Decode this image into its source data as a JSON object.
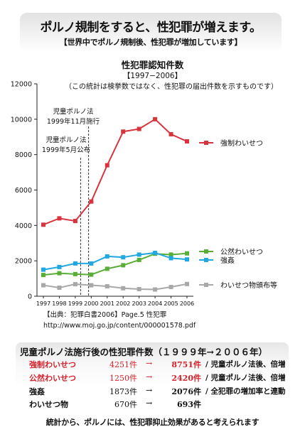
{
  "header": {
    "title": "ポルノ規制をすると、性犯罪が増えます。",
    "subtitle": "【世界中でポルノ規制後、性犯罪が増加しています】"
  },
  "chart_data": {
    "type": "line",
    "title": "性犯罪認知件数",
    "period": "【1997−2006】",
    "note": "（この統計は検挙数ではなく、性犯罪の届出件数を示すものです）",
    "x": [
      "1997",
      "1998",
      "1999",
      "2000",
      "2001",
      "2002",
      "2003",
      "2004",
      "2005",
      "2006"
    ],
    "y_ticks": [
      "0",
      "2000",
      "4000",
      "6000",
      "8000",
      "10000",
      "12000"
    ],
    "ylim": [
      0,
      12000
    ],
    "grid": false,
    "series": [
      {
        "name": "強制わいせつ",
        "color": "#d8343d",
        "values": [
          4040,
          4400,
          4250,
          5350,
          7400,
          9300,
          9450,
          10000,
          9150,
          8750
        ]
      },
      {
        "name": "公然わいせつ",
        "color": "#5aae38",
        "values": [
          1200,
          1300,
          1250,
          1220,
          1550,
          1750,
          2050,
          2400,
          2350,
          2420
        ]
      },
      {
        "name": "強姦",
        "color": "#22a8e0",
        "values": [
          1500,
          1650,
          1850,
          1850,
          2250,
          2200,
          2350,
          2450,
          2150,
          2080
        ]
      },
      {
        "name": "わいせつ物頒布等",
        "color": "#a8a8a8",
        "values": [
          620,
          480,
          680,
          620,
          560,
          450,
          400,
          380,
          520,
          690
        ]
      }
    ],
    "annotations": [
      {
        "lines": [
          "児童ポルノ法",
          "1999年5月公布"
        ]
      },
      {
        "lines": [
          "児童ポルノ法",
          "1999年11月施行"
        ]
      }
    ]
  },
  "source": {
    "line1": "【出典：犯罪白書2006】Page.5 性犯罪",
    "line2": "http://www.moj.go.jp/content/000001578.pdf"
  },
  "stats": {
    "title": "児童ポルノ法施行後の性犯罪件数（１９９９年→２００６年）",
    "rows": [
      {
        "name": "強制わいせつ",
        "before": "4251件",
        "arrow": "→",
        "after": "8751件",
        "note": "/ 児童ポルノ法後、倍増",
        "highlight": true
      },
      {
        "name": "公然わいせつ",
        "before": "1250件",
        "arrow": "→",
        "after": "2420件",
        "note": "/ 児童ポルノ法後、倍増",
        "highlight": true
      },
      {
        "name": "強姦",
        "before": "1873件",
        "arrow": "→",
        "after": "2076件",
        "note": "/ 全犯罪の増加率と連動",
        "highlight": false
      },
      {
        "name": "わいせつ物",
        "before": "670件",
        "arrow": "→",
        "after": "693件",
        "note": "",
        "highlight": false
      }
    ]
  },
  "conclusion": "統計から、ポルノには、性犯罪抑止効果があると考えられます"
}
